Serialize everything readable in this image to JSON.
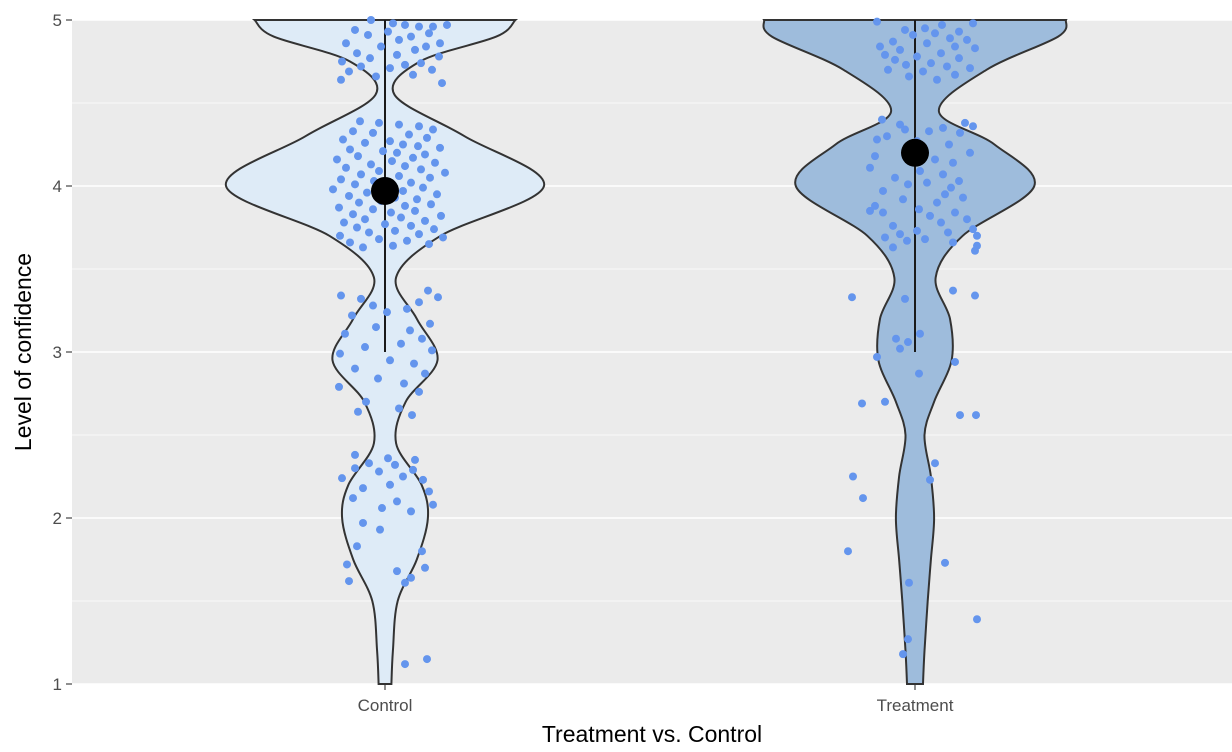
{
  "chart_data": {
    "type": "violin",
    "title": "",
    "xlabel": "Treatment vs. Control",
    "ylabel": "Level of confidence",
    "ylim": [
      1,
      5
    ],
    "yticks": [
      1,
      2,
      3,
      4,
      5
    ],
    "grid": true,
    "legend": "none",
    "colors": {
      "panel_background": "#ebebeb",
      "grid": "#ffffff",
      "violin_outline": "#333333",
      "points": "#6495ed",
      "mean_marker": "#000000"
    },
    "categories": [
      "Control",
      "Treatment"
    ],
    "series": [
      {
        "category": "Control",
        "fill": "#deebf7",
        "mean": 3.97,
        "whisker": [
          3.0,
          5.0
        ],
        "density": [
          [
            1.0,
            0.04
          ],
          [
            1.2,
            0.05
          ],
          [
            1.5,
            0.08
          ],
          [
            1.75,
            0.2
          ],
          [
            2.0,
            0.27
          ],
          [
            2.2,
            0.23
          ],
          [
            2.45,
            0.07
          ],
          [
            2.7,
            0.13
          ],
          [
            2.95,
            0.33
          ],
          [
            3.2,
            0.2
          ],
          [
            3.45,
            0.07
          ],
          [
            3.7,
            0.35
          ],
          [
            4.0,
            1.0
          ],
          [
            4.3,
            0.5
          ],
          [
            4.55,
            0.06
          ],
          [
            4.75,
            0.22
          ],
          [
            4.9,
            0.7
          ],
          [
            5.0,
            0.82
          ]
        ],
        "points": [
          [
            -0.14,
            5.0
          ],
          [
            0.08,
            4.98
          ],
          [
            0.2,
            4.97
          ],
          [
            0.34,
            4.96
          ],
          [
            0.48,
            4.96
          ],
          [
            0.62,
            4.97
          ],
          [
            -0.3,
            4.94
          ],
          [
            0.03,
            4.93
          ],
          [
            0.44,
            4.92
          ],
          [
            -0.17,
            4.91
          ],
          [
            0.26,
            4.9
          ],
          [
            0.14,
            4.88
          ],
          [
            -0.39,
            4.86
          ],
          [
            0.55,
            4.86
          ],
          [
            0.41,
            4.84
          ],
          [
            -0.04,
            4.84
          ],
          [
            0.3,
            4.82
          ],
          [
            -0.28,
            4.8
          ],
          [
            0.12,
            4.79
          ],
          [
            0.54,
            4.78
          ],
          [
            -0.15,
            4.77
          ],
          [
            -0.43,
            4.75
          ],
          [
            0.36,
            4.74
          ],
          [
            0.2,
            4.73
          ],
          [
            -0.24,
            4.72
          ],
          [
            0.05,
            4.71
          ],
          [
            0.47,
            4.7
          ],
          [
            -0.36,
            4.69
          ],
          [
            0.28,
            4.67
          ],
          [
            -0.09,
            4.66
          ],
          [
            -0.44,
            4.64
          ],
          [
            0.57,
            4.62
          ],
          [
            -0.25,
            4.39
          ],
          [
            -0.06,
            4.38
          ],
          [
            0.14,
            4.37
          ],
          [
            0.34,
            4.36
          ],
          [
            0.48,
            4.34
          ],
          [
            -0.32,
            4.33
          ],
          [
            -0.12,
            4.32
          ],
          [
            0.24,
            4.31
          ],
          [
            0.42,
            4.29
          ],
          [
            -0.42,
            4.28
          ],
          [
            0.05,
            4.27
          ],
          [
            -0.2,
            4.26
          ],
          [
            0.18,
            4.25
          ],
          [
            0.33,
            4.24
          ],
          [
            0.55,
            4.23
          ],
          [
            -0.35,
            4.22
          ],
          [
            -0.02,
            4.21
          ],
          [
            0.12,
            4.2
          ],
          [
            0.4,
            4.19
          ],
          [
            -0.27,
            4.18
          ],
          [
            0.28,
            4.17
          ],
          [
            -0.48,
            4.16
          ],
          [
            0.07,
            4.15
          ],
          [
            0.5,
            4.14
          ],
          [
            -0.14,
            4.13
          ],
          [
            0.2,
            4.12
          ],
          [
            -0.39,
            4.11
          ],
          [
            0.36,
            4.1
          ],
          [
            -0.06,
            4.09
          ],
          [
            0.6,
            4.08
          ],
          [
            -0.24,
            4.07
          ],
          [
            0.14,
            4.06
          ],
          [
            0.45,
            4.05
          ],
          [
            -0.44,
            4.04
          ],
          [
            -0.11,
            4.03
          ],
          [
            0.26,
            4.02
          ],
          [
            -0.3,
            4.01
          ],
          [
            0.04,
            4.0
          ],
          [
            0.38,
            3.99
          ],
          [
            -0.52,
            3.98
          ],
          [
            0.18,
            3.97
          ],
          [
            -0.18,
            3.96
          ],
          [
            0.52,
            3.95
          ],
          [
            -0.36,
            3.94
          ],
          [
            0.1,
            3.93
          ],
          [
            0.32,
            3.92
          ],
          [
            -0.04,
            3.91
          ],
          [
            -0.26,
            3.9
          ],
          [
            0.46,
            3.89
          ],
          [
            0.2,
            3.88
          ],
          [
            -0.46,
            3.87
          ],
          [
            -0.12,
            3.86
          ],
          [
            0.3,
            3.85
          ],
          [
            0.06,
            3.84
          ],
          [
            -0.32,
            3.83
          ],
          [
            0.56,
            3.82
          ],
          [
            0.16,
            3.81
          ],
          [
            -0.2,
            3.8
          ],
          [
            0.4,
            3.79
          ],
          [
            -0.41,
            3.78
          ],
          [
            0.0,
            3.77
          ],
          [
            0.26,
            3.76
          ],
          [
            -0.28,
            3.75
          ],
          [
            0.49,
            3.74
          ],
          [
            0.1,
            3.73
          ],
          [
            -0.16,
            3.72
          ],
          [
            0.34,
            3.71
          ],
          [
            -0.45,
            3.7
          ],
          [
            0.58,
            3.69
          ],
          [
            -0.06,
            3.68
          ],
          [
            0.22,
            3.67
          ],
          [
            -0.35,
            3.66
          ],
          [
            0.44,
            3.65
          ],
          [
            0.08,
            3.64
          ],
          [
            -0.22,
            3.63
          ],
          [
            0.43,
            3.37
          ],
          [
            -0.44,
            3.34
          ],
          [
            0.53,
            3.33
          ],
          [
            -0.24,
            3.32
          ],
          [
            0.34,
            3.3
          ],
          [
            -0.12,
            3.28
          ],
          [
            0.22,
            3.26
          ],
          [
            0.02,
            3.24
          ],
          [
            -0.33,
            3.22
          ],
          [
            0.45,
            3.17
          ],
          [
            -0.09,
            3.15
          ],
          [
            0.25,
            3.13
          ],
          [
            -0.4,
            3.11
          ],
          [
            0.37,
            3.08
          ],
          [
            0.16,
            3.05
          ],
          [
            -0.2,
            3.03
          ],
          [
            0.47,
            3.01
          ],
          [
            -0.45,
            2.99
          ],
          [
            0.05,
            2.95
          ],
          [
            0.29,
            2.93
          ],
          [
            -0.3,
            2.9
          ],
          [
            0.4,
            2.87
          ],
          [
            -0.07,
            2.84
          ],
          [
            0.19,
            2.81
          ],
          [
            -0.46,
            2.79
          ],
          [
            0.34,
            2.76
          ],
          [
            -0.19,
            2.7
          ],
          [
            0.14,
            2.66
          ],
          [
            -0.27,
            2.64
          ],
          [
            0.27,
            2.62
          ],
          [
            -0.3,
            2.38
          ],
          [
            0.03,
            2.36
          ],
          [
            0.3,
            2.35
          ],
          [
            -0.16,
            2.33
          ],
          [
            0.1,
            2.32
          ],
          [
            -0.3,
            2.3
          ],
          [
            0.28,
            2.29
          ],
          [
            -0.06,
            2.28
          ],
          [
            0.18,
            2.25
          ],
          [
            -0.43,
            2.24
          ],
          [
            0.38,
            2.23
          ],
          [
            0.05,
            2.2
          ],
          [
            -0.22,
            2.18
          ],
          [
            0.44,
            2.16
          ],
          [
            -0.32,
            2.12
          ],
          [
            0.12,
            2.1
          ],
          [
            0.48,
            2.08
          ],
          [
            -0.03,
            2.06
          ],
          [
            0.26,
            2.04
          ],
          [
            -0.22,
            1.97
          ],
          [
            -0.05,
            1.93
          ],
          [
            -0.28,
            1.83
          ],
          [
            0.37,
            1.8
          ],
          [
            -0.38,
            1.72
          ],
          [
            0.4,
            1.7
          ],
          [
            0.12,
            1.68
          ],
          [
            0.26,
            1.64
          ],
          [
            -0.36,
            1.62
          ],
          [
            0.2,
            1.61
          ],
          [
            0.42,
            1.15
          ],
          [
            0.2,
            1.12
          ]
        ]
      },
      {
        "category": "Treatment",
        "fill": "#9ebcdc",
        "mean": 4.2,
        "whisker": [
          3.0,
          5.0
        ],
        "density": [
          [
            1.0,
            0.05
          ],
          [
            1.2,
            0.06
          ],
          [
            1.5,
            0.08
          ],
          [
            1.75,
            0.1
          ],
          [
            2.0,
            0.12
          ],
          [
            2.25,
            0.1
          ],
          [
            2.5,
            0.06
          ],
          [
            2.7,
            0.12
          ],
          [
            2.95,
            0.23
          ],
          [
            3.2,
            0.22
          ],
          [
            3.45,
            0.13
          ],
          [
            3.7,
            0.3
          ],
          [
            4.0,
            0.75
          ],
          [
            4.25,
            0.5
          ],
          [
            4.45,
            0.15
          ],
          [
            4.7,
            0.45
          ],
          [
            4.9,
            0.9
          ],
          [
            5.0,
            0.95
          ]
        ],
        "points": [
          [
            -0.38,
            4.99
          ],
          [
            0.58,
            4.98
          ],
          [
            0.27,
            4.97
          ],
          [
            0.1,
            4.95
          ],
          [
            -0.1,
            4.94
          ],
          [
            0.44,
            4.93
          ],
          [
            0.2,
            4.92
          ],
          [
            -0.02,
            4.91
          ],
          [
            0.35,
            4.89
          ],
          [
            0.52,
            4.88
          ],
          [
            -0.22,
            4.87
          ],
          [
            0.12,
            4.86
          ],
          [
            -0.35,
            4.84
          ],
          [
            0.4,
            4.84
          ],
          [
            0.6,
            4.83
          ],
          [
            -0.15,
            4.82
          ],
          [
            0.26,
            4.8
          ],
          [
            -0.3,
            4.79
          ],
          [
            0.02,
            4.78
          ],
          [
            0.44,
            4.77
          ],
          [
            -0.2,
            4.76
          ],
          [
            0.16,
            4.74
          ],
          [
            -0.09,
            4.73
          ],
          [
            0.32,
            4.72
          ],
          [
            0.55,
            4.71
          ],
          [
            -0.27,
            4.7
          ],
          [
            0.08,
            4.69
          ],
          [
            0.4,
            4.67
          ],
          [
            -0.06,
            4.66
          ],
          [
            0.22,
            4.64
          ],
          [
            -0.33,
            4.4
          ],
          [
            0.5,
            4.38
          ],
          [
            -0.15,
            4.37
          ],
          [
            0.58,
            4.36
          ],
          [
            0.28,
            4.35
          ],
          [
            -0.1,
            4.34
          ],
          [
            0.14,
            4.33
          ],
          [
            0.45,
            4.32
          ],
          [
            -0.28,
            4.3
          ],
          [
            -0.38,
            4.28
          ],
          [
            0.02,
            4.27
          ],
          [
            0.34,
            4.25
          ],
          [
            0.55,
            4.2
          ],
          [
            -0.4,
            4.18
          ],
          [
            0.2,
            4.16
          ],
          [
            0.38,
            4.14
          ],
          [
            -0.45,
            4.11
          ],
          [
            0.05,
            4.09
          ],
          [
            0.28,
            4.07
          ],
          [
            -0.2,
            4.05
          ],
          [
            0.44,
            4.03
          ],
          [
            0.12,
            4.02
          ],
          [
            -0.07,
            4.01
          ],
          [
            0.36,
            3.99
          ],
          [
            -0.32,
            3.97
          ],
          [
            0.3,
            3.95
          ],
          [
            0.48,
            3.93
          ],
          [
            -0.12,
            3.92
          ],
          [
            0.22,
            3.9
          ],
          [
            -0.4,
            3.88
          ],
          [
            0.04,
            3.86
          ],
          [
            -0.45,
            3.85
          ],
          [
            0.4,
            3.84
          ],
          [
            -0.32,
            3.84
          ],
          [
            0.15,
            3.82
          ],
          [
            0.52,
            3.8
          ],
          [
            0.26,
            3.78
          ],
          [
            -0.22,
            3.76
          ],
          [
            0.58,
            3.74
          ],
          [
            0.02,
            3.73
          ],
          [
            0.33,
            3.72
          ],
          [
            -0.15,
            3.71
          ],
          [
            0.62,
            3.7
          ],
          [
            -0.3,
            3.69
          ],
          [
            0.1,
            3.68
          ],
          [
            -0.08,
            3.67
          ],
          [
            0.38,
            3.66
          ],
          [
            0.62,
            3.64
          ],
          [
            -0.22,
            3.63
          ],
          [
            0.6,
            3.61
          ],
          [
            0.38,
            3.37
          ],
          [
            0.6,
            3.34
          ],
          [
            -0.63,
            3.33
          ],
          [
            -0.1,
            3.32
          ],
          [
            0.05,
            3.11
          ],
          [
            -0.19,
            3.08
          ],
          [
            -0.07,
            3.06
          ],
          [
            -0.15,
            3.02
          ],
          [
            -0.38,
            2.97
          ],
          [
            0.4,
            2.94
          ],
          [
            0.04,
            2.87
          ],
          [
            -0.3,
            2.7
          ],
          [
            -0.53,
            2.69
          ],
          [
            0.45,
            2.62
          ],
          [
            0.61,
            2.62
          ],
          [
            0.2,
            2.33
          ],
          [
            -0.62,
            2.25
          ],
          [
            0.15,
            2.23
          ],
          [
            -0.52,
            2.12
          ],
          [
            -0.67,
            1.8
          ],
          [
            0.3,
            1.73
          ],
          [
            -0.06,
            1.61
          ],
          [
            0.62,
            1.39
          ],
          [
            -0.07,
            1.27
          ],
          [
            -0.12,
            1.18
          ]
        ]
      }
    ]
  }
}
